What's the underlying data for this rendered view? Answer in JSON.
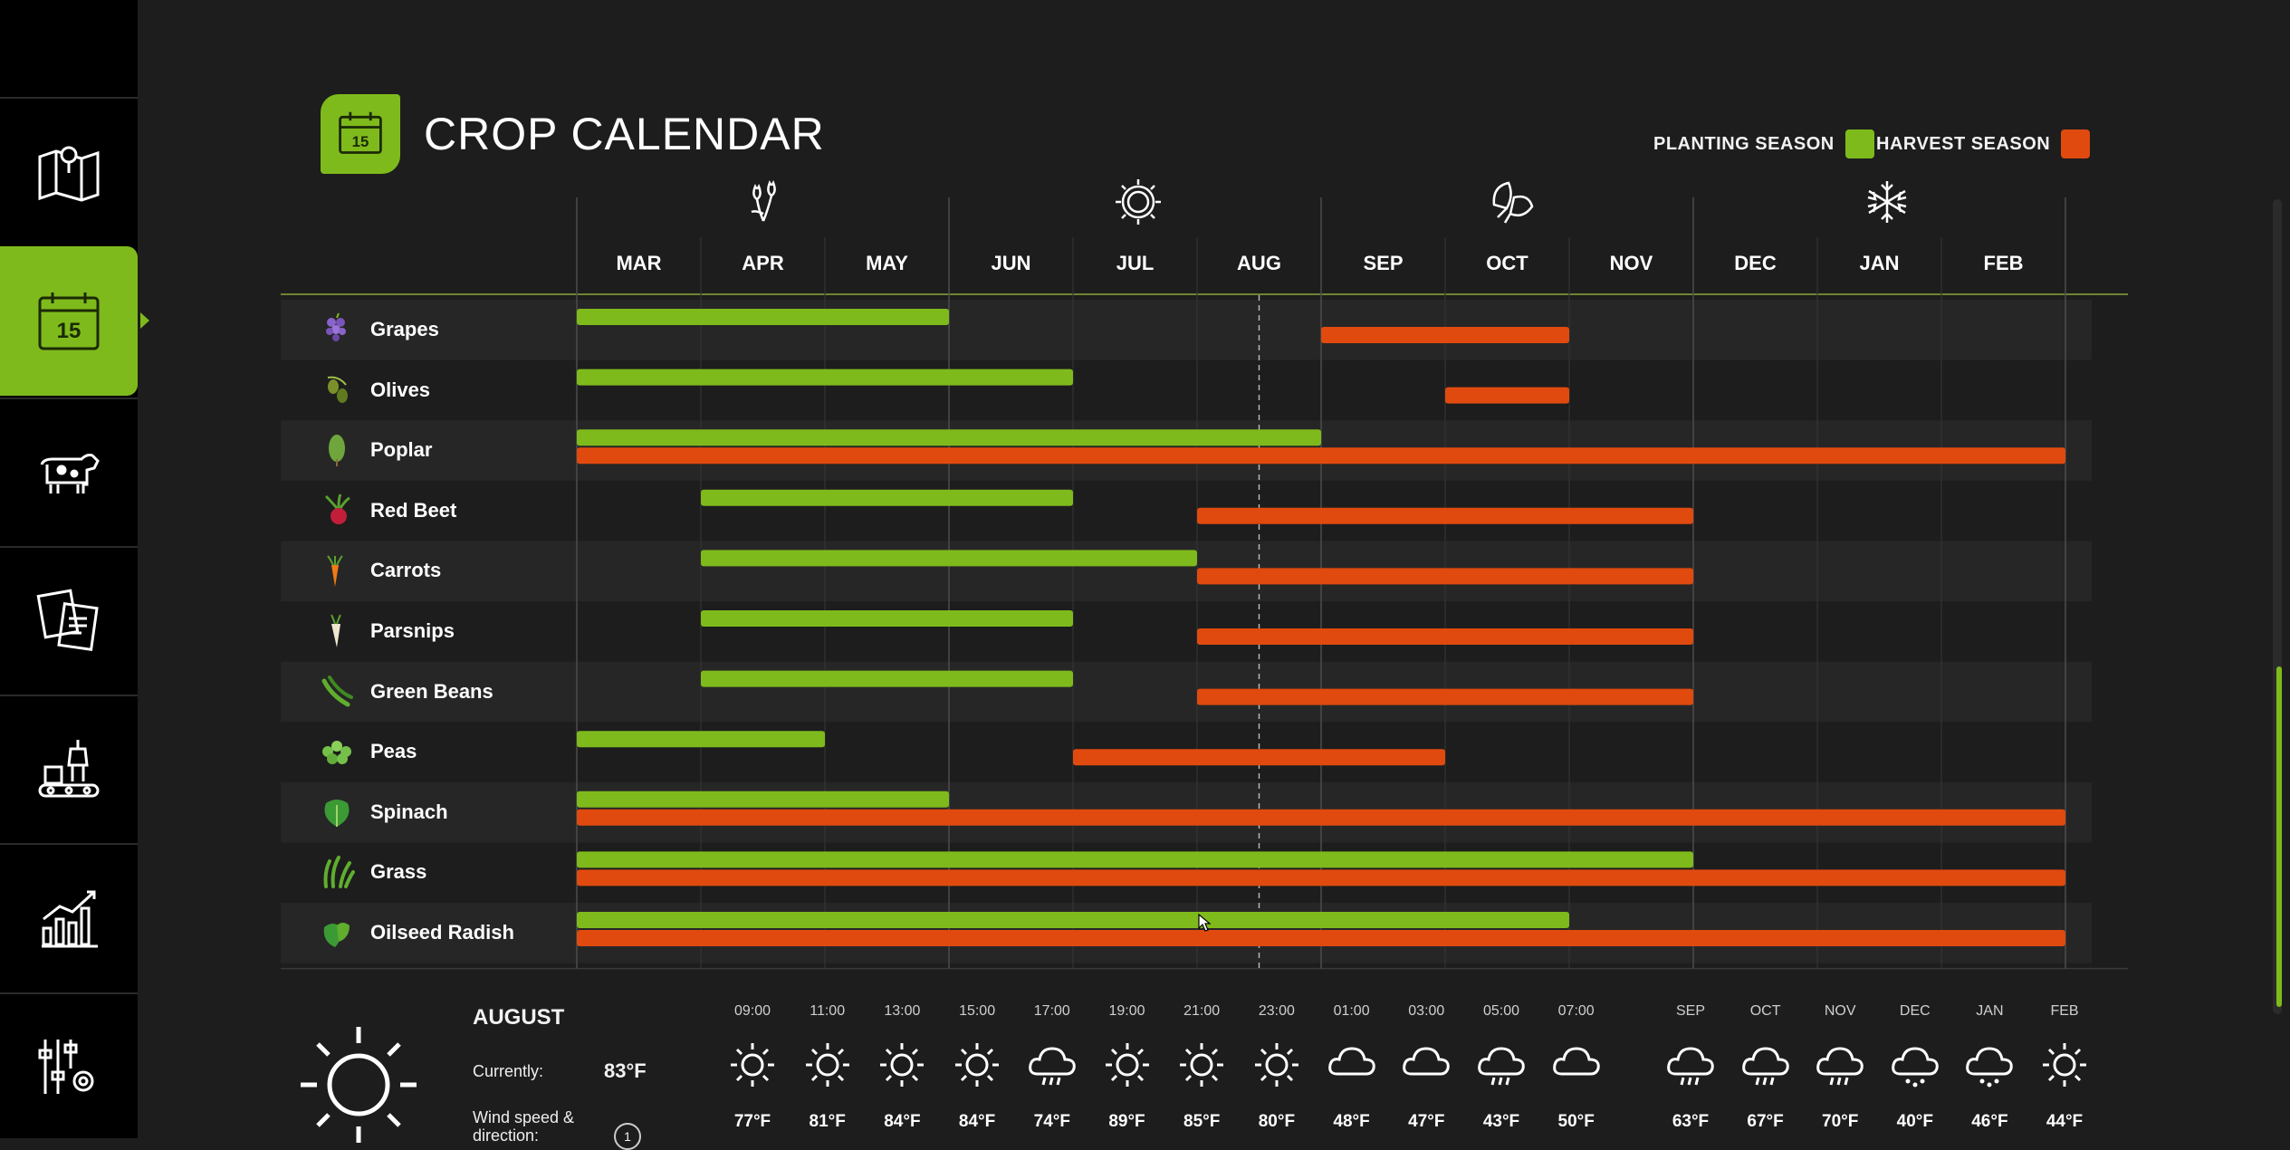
{
  "title": "CROP CALENDAR",
  "legend": {
    "planting_label": "PLANTING SEASON",
    "harvest_label": "HARVEST SEASON",
    "planting_color": "#7fba1c",
    "harvest_color": "#e04a0f"
  },
  "sidebar": {
    "items": [
      {
        "name": "map-icon"
      },
      {
        "name": "calendar-icon",
        "active": true
      },
      {
        "name": "livestock-icon"
      },
      {
        "name": "contracts-icon"
      },
      {
        "name": "production-icon"
      },
      {
        "name": "statistics-icon"
      },
      {
        "name": "settings-icon"
      }
    ]
  },
  "calendar_icon_text": "15",
  "months": [
    "MAR",
    "APR",
    "MAY",
    "JUN",
    "JUL",
    "AUG",
    "SEP",
    "OCT",
    "NOV",
    "DEC",
    "JAN",
    "FEB"
  ],
  "season_icons": [
    "spring-flower-icon",
    "summer-sun-icon",
    "autumn-leaves-icon",
    "winter-snowflake-icon"
  ],
  "current_month_index": 5,
  "crops": [
    {
      "name": "Grapes",
      "icon": "grapes-icon",
      "plant": [
        [
          0,
          3
        ]
      ],
      "harvest": [
        [
          6,
          8
        ]
      ]
    },
    {
      "name": "Olives",
      "icon": "olives-icon",
      "plant": [
        [
          0,
          4
        ]
      ],
      "harvest": [
        [
          7,
          8
        ]
      ]
    },
    {
      "name": "Poplar",
      "icon": "poplar-icon",
      "plant": [
        [
          0,
          6
        ]
      ],
      "harvest": [
        [
          0,
          12
        ]
      ]
    },
    {
      "name": "Red Beet",
      "icon": "red-beet-icon",
      "plant": [
        [
          1,
          4
        ]
      ],
      "harvest": [
        [
          5,
          9
        ]
      ]
    },
    {
      "name": "Carrots",
      "icon": "carrot-icon",
      "plant": [
        [
          1,
          5
        ]
      ],
      "harvest": [
        [
          5,
          9
        ]
      ]
    },
    {
      "name": "Parsnips",
      "icon": "parsnip-icon",
      "plant": [
        [
          1,
          4
        ]
      ],
      "harvest": [
        [
          5,
          9
        ]
      ]
    },
    {
      "name": "Green Beans",
      "icon": "green-beans-icon",
      "plant": [
        [
          1,
          4
        ]
      ],
      "harvest": [
        [
          5,
          9
        ]
      ]
    },
    {
      "name": "Peas",
      "icon": "peas-icon",
      "plant": [
        [
          0,
          2
        ]
      ],
      "harvest": [
        [
          4,
          7
        ]
      ]
    },
    {
      "name": "Spinach",
      "icon": "spinach-icon",
      "plant": [
        [
          0,
          3
        ]
      ],
      "harvest": [
        [
          0,
          12
        ]
      ]
    },
    {
      "name": "Grass",
      "icon": "grass-icon",
      "plant": [
        [
          0,
          9
        ]
      ],
      "harvest": [
        [
          0,
          12
        ]
      ]
    },
    {
      "name": "Oilseed Radish",
      "icon": "oilseed-radish-icon",
      "plant": [
        [
          0,
          8
        ]
      ],
      "harvest": [
        [
          0,
          12
        ]
      ]
    }
  ],
  "weather": {
    "month": "AUGUST",
    "currently_label": "Currently:",
    "currently_value": "83°F",
    "wind_label": "Wind speed & direction:",
    "wind_value": "1",
    "current_icon": "sun-icon",
    "hourly": [
      {
        "time": "09:00",
        "icon": "sun-icon",
        "temp": "77°F"
      },
      {
        "time": "11:00",
        "icon": "sun-icon",
        "temp": "81°F"
      },
      {
        "time": "13:00",
        "icon": "sun-icon",
        "temp": "84°F"
      },
      {
        "time": "15:00",
        "icon": "sun-icon",
        "temp": "84°F"
      },
      {
        "time": "17:00",
        "icon": "rain-cloud-icon",
        "temp": "74°F"
      },
      {
        "time": "19:00",
        "icon": "sun-icon",
        "temp": "89°F"
      },
      {
        "time": "21:00",
        "icon": "sun-icon",
        "temp": "85°F"
      },
      {
        "time": "23:00",
        "icon": "sun-icon",
        "temp": "80°F"
      },
      {
        "time": "01:00",
        "icon": "cloud-icon",
        "temp": "48°F"
      },
      {
        "time": "03:00",
        "icon": "cloud-icon",
        "temp": "47°F"
      },
      {
        "time": "05:00",
        "icon": "rain-cloud-icon",
        "temp": "43°F"
      },
      {
        "time": "07:00",
        "icon": "cloud-icon",
        "temp": "50°F"
      }
    ],
    "monthly": [
      {
        "time": "SEP",
        "icon": "rain-cloud-icon",
        "temp": "63°F"
      },
      {
        "time": "OCT",
        "icon": "rain-cloud-icon",
        "temp": "67°F"
      },
      {
        "time": "NOV",
        "icon": "rain-cloud-icon",
        "temp": "70°F"
      },
      {
        "time": "DEC",
        "icon": "snow-cloud-icon",
        "temp": "40°F"
      },
      {
        "time": "JAN",
        "icon": "snow-cloud-icon",
        "temp": "46°F"
      },
      {
        "time": "FEB",
        "icon": "sun-icon",
        "temp": "44°F"
      }
    ]
  }
}
